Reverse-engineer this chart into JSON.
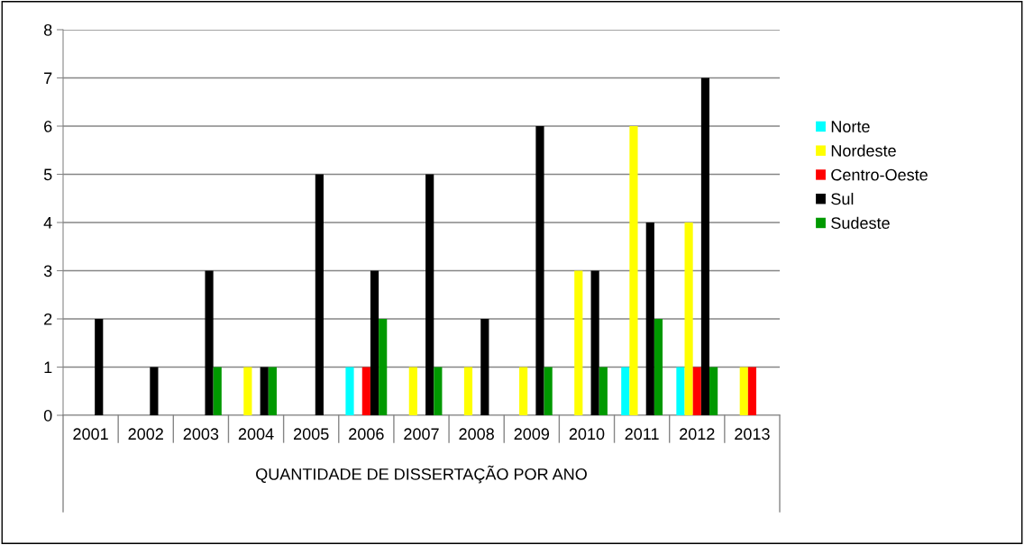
{
  "chart_data": {
    "type": "bar",
    "xlabel": "QUANTIDADE DE DISSERTAÇÃO POR ANO",
    "categories": [
      "2001",
      "2002",
      "2003",
      "2004",
      "2005",
      "2006",
      "2007",
      "2008",
      "2009",
      "2010",
      "2011",
      "2012",
      "2013"
    ],
    "series": [
      {
        "name": "Norte",
        "color": "#00ffff",
        "values": [
          null,
          null,
          null,
          null,
          null,
          1,
          null,
          null,
          null,
          null,
          1,
          1,
          null
        ]
      },
      {
        "name": "Nordeste",
        "color": "#ffff00",
        "values": [
          null,
          null,
          null,
          1,
          null,
          null,
          1,
          1,
          1,
          3,
          6,
          4,
          1
        ]
      },
      {
        "name": "Centro-Oeste",
        "color": "#ff0000",
        "values": [
          null,
          null,
          null,
          null,
          null,
          1,
          null,
          null,
          null,
          null,
          null,
          1,
          1
        ]
      },
      {
        "name": "Sul",
        "color": "#000000",
        "values": [
          2,
          1,
          3,
          1,
          5,
          3,
          5,
          2,
          6,
          3,
          4,
          7,
          null
        ]
      },
      {
        "name": "Sudeste",
        "color": "#009900",
        "values": [
          null,
          null,
          1,
          1,
          null,
          2,
          1,
          null,
          1,
          1,
          2,
          1,
          null
        ]
      }
    ],
    "ylim": [
      0,
      8
    ],
    "yticks": [
      0,
      1,
      2,
      3,
      4,
      5,
      6,
      7,
      8
    ],
    "grid": "y",
    "legend": "right"
  }
}
